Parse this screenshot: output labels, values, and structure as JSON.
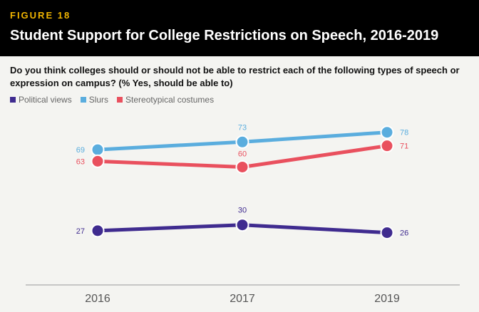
{
  "figure_label": "FIGURE 18",
  "title": "Student Support for College Restrictions on Speech, 2016-2019",
  "question": "Do you think colleges should or should not be able to restrict each of the following types of speech or expression on campus? (% Yes, should be able to)",
  "colors": {
    "political": "#3f2b8f",
    "slurs": "#5aadde",
    "costumes": "#e9505e",
    "axis": "#999999"
  },
  "chart_data": {
    "type": "line",
    "title": "Student Support for College Restrictions on Speech, 2016-2019",
    "x": [
      "2016",
      "2017",
      "2019"
    ],
    "series": [
      {
        "name": "Political views",
        "key": "political",
        "values": [
          27,
          30,
          26
        ]
      },
      {
        "name": "Slurs",
        "key": "slurs",
        "values": [
          69,
          73,
          78
        ]
      },
      {
        "name": "Stereotypical costumes",
        "key": "costumes",
        "values": [
          63,
          60,
          71
        ]
      }
    ],
    "ylim": [
      0,
      100
    ],
    "grid": false,
    "legend": "top-left"
  }
}
